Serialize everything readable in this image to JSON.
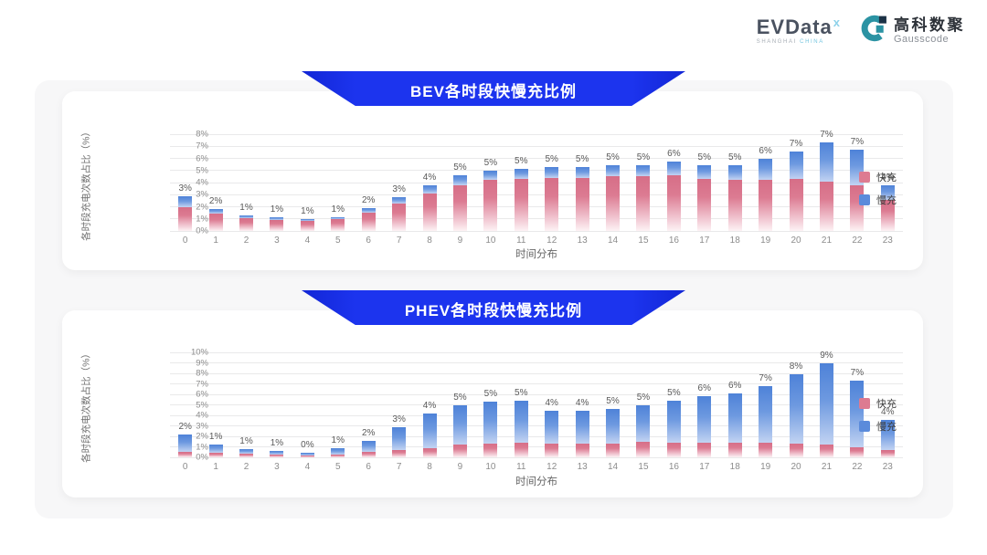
{
  "header": {
    "evdata_logo": {
      "text": "EVData",
      "superscript": "x",
      "sub_left": "SHANGHAI",
      "sub_right": "CHINA"
    },
    "gausscode_logo": {
      "cn": "高科数聚",
      "en": "Gausscode"
    }
  },
  "colors": {
    "banner_blue": "#1c34ee",
    "fast_pink": "#dd7b91",
    "slow_blue": "#5b8bdb",
    "panel_gray": "#f7f7f8"
  },
  "chart_data": [
    {
      "type": "bar",
      "stacked": true,
      "title": "BEV各时段快慢充比例",
      "xlabel": "时间分布",
      "ylabel": "各时段充电次数占比（%）",
      "ylim": [
        0,
        8
      ],
      "ytick_step": 1,
      "yticks": [
        "0%",
        "1%",
        "2%",
        "3%",
        "4%",
        "5%",
        "6%",
        "7%",
        "8%"
      ],
      "grid": true,
      "legend_position": "right",
      "categories": [
        "0",
        "1",
        "2",
        "3",
        "4",
        "5",
        "6",
        "7",
        "8",
        "9",
        "10",
        "11",
        "12",
        "13",
        "14",
        "15",
        "16",
        "17",
        "18",
        "19",
        "20",
        "21",
        "22",
        "23"
      ],
      "series": [
        {
          "name": "快充",
          "color": "#dd7b91",
          "values": [
            2.0,
            1.4,
            1.05,
            0.9,
            0.85,
            0.95,
            1.5,
            2.3,
            3.1,
            3.8,
            4.2,
            4.3,
            4.4,
            4.4,
            4.5,
            4.5,
            4.6,
            4.3,
            4.2,
            4.2,
            4.3,
            4.1,
            3.8,
            2.6
          ]
        },
        {
          "name": "慢充",
          "color": "#5b8bdb",
          "values": [
            0.9,
            0.45,
            0.25,
            0.2,
            0.1,
            0.2,
            0.4,
            0.5,
            0.7,
            0.8,
            0.8,
            0.8,
            0.9,
            0.9,
            0.9,
            0.95,
            1.1,
            1.1,
            1.2,
            1.8,
            2.3,
            3.2,
            2.9,
            1.2
          ]
        }
      ],
      "total_labels": [
        "3%",
        "2%",
        "1%",
        "1%",
        "1%",
        "1%",
        "2%",
        "3%",
        "4%",
        "5%",
        "5%",
        "5%",
        "5%",
        "5%",
        "5%",
        "5%",
        "6%",
        "5%",
        "5%",
        "6%",
        "7%",
        "7%",
        "7%",
        "4%"
      ]
    },
    {
      "type": "bar",
      "stacked": true,
      "title": "PHEV各时段快慢充比例",
      "xlabel": "时间分布",
      "ylabel": "各时段充电次数占比（%）",
      "ylim": [
        0,
        10
      ],
      "ytick_step": 1,
      "yticks": [
        "0%",
        "1%",
        "2%",
        "3%",
        "4%",
        "5%",
        "6%",
        "7%",
        "8%",
        "9%",
        "10%"
      ],
      "grid": true,
      "legend_position": "right",
      "categories": [
        "0",
        "1",
        "2",
        "3",
        "4",
        "5",
        "6",
        "7",
        "8",
        "9",
        "10",
        "11",
        "12",
        "13",
        "14",
        "15",
        "16",
        "17",
        "18",
        "19",
        "20",
        "21",
        "22",
        "23"
      ],
      "series": [
        {
          "name": "快充",
          "color": "#dd7b91",
          "values": [
            0.5,
            0.45,
            0.35,
            0.3,
            0.2,
            0.3,
            0.5,
            0.7,
            0.9,
            1.2,
            1.3,
            1.4,
            1.3,
            1.3,
            1.3,
            1.5,
            1.4,
            1.4,
            1.4,
            1.4,
            1.3,
            1.2,
            1.0,
            0.7
          ]
        },
        {
          "name": "慢充",
          "color": "#5b8bdb",
          "values": [
            1.7,
            0.8,
            0.45,
            0.35,
            0.25,
            0.6,
            1.1,
            2.2,
            3.3,
            3.8,
            4.0,
            4.0,
            3.1,
            3.1,
            3.3,
            3.5,
            4.0,
            4.4,
            4.7,
            5.4,
            6.6,
            7.8,
            6.3,
            2.9
          ]
        }
      ],
      "total_labels": [
        "2%",
        "1%",
        "1%",
        "1%",
        "0%",
        "1%",
        "2%",
        "3%",
        "4%",
        "5%",
        "5%",
        "5%",
        "4%",
        "4%",
        "5%",
        "5%",
        "5%",
        "6%",
        "6%",
        "7%",
        "8%",
        "9%",
        "7%",
        "4%"
      ]
    }
  ]
}
